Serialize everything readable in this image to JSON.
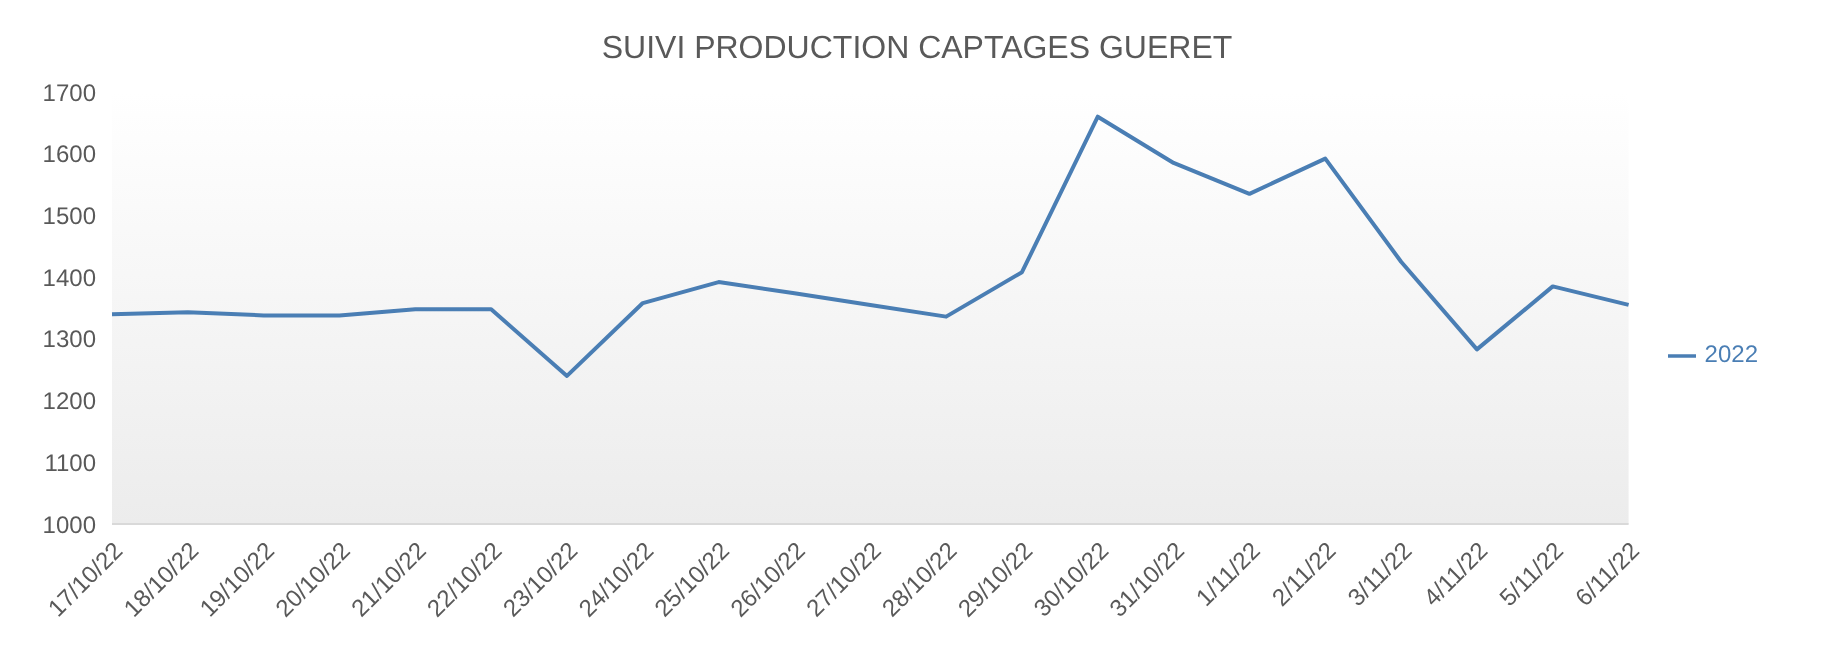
{
  "chart_data": {
    "type": "line",
    "title": "SUIVI PRODUCTION CAPTAGES GUERET",
    "categories": [
      "17/10/22",
      "18/10/22",
      "19/10/22",
      "20/10/22",
      "21/10/22",
      "22/10/22",
      "23/10/22",
      "24/10/22",
      "25/10/22",
      "26/10/22",
      "27/10/22",
      "28/10/22",
      "29/10/22",
      "30/10/22",
      "31/10/22",
      "1/11/22",
      "2/11/22",
      "3/11/22",
      "4/11/22",
      "5/11/22",
      "6/11/22"
    ],
    "series": [
      {
        "name": "2022",
        "color": "#4a7eb4",
        "values": [
          1340,
          1343,
          1338,
          1338,
          1348,
          1348,
          1240,
          1358,
          1392,
          1374,
          1355,
          1336,
          1408,
          1660,
          1585,
          1535,
          1592,
          1425,
          1283,
          1385,
          1355
        ]
      }
    ],
    "ylim": [
      1000,
      1700
    ],
    "yticks": [
      1000,
      1100,
      1200,
      1300,
      1400,
      1500,
      1600,
      1700
    ],
    "grid": false,
    "legend": "right",
    "marker": "none",
    "line_style": "solid"
  }
}
